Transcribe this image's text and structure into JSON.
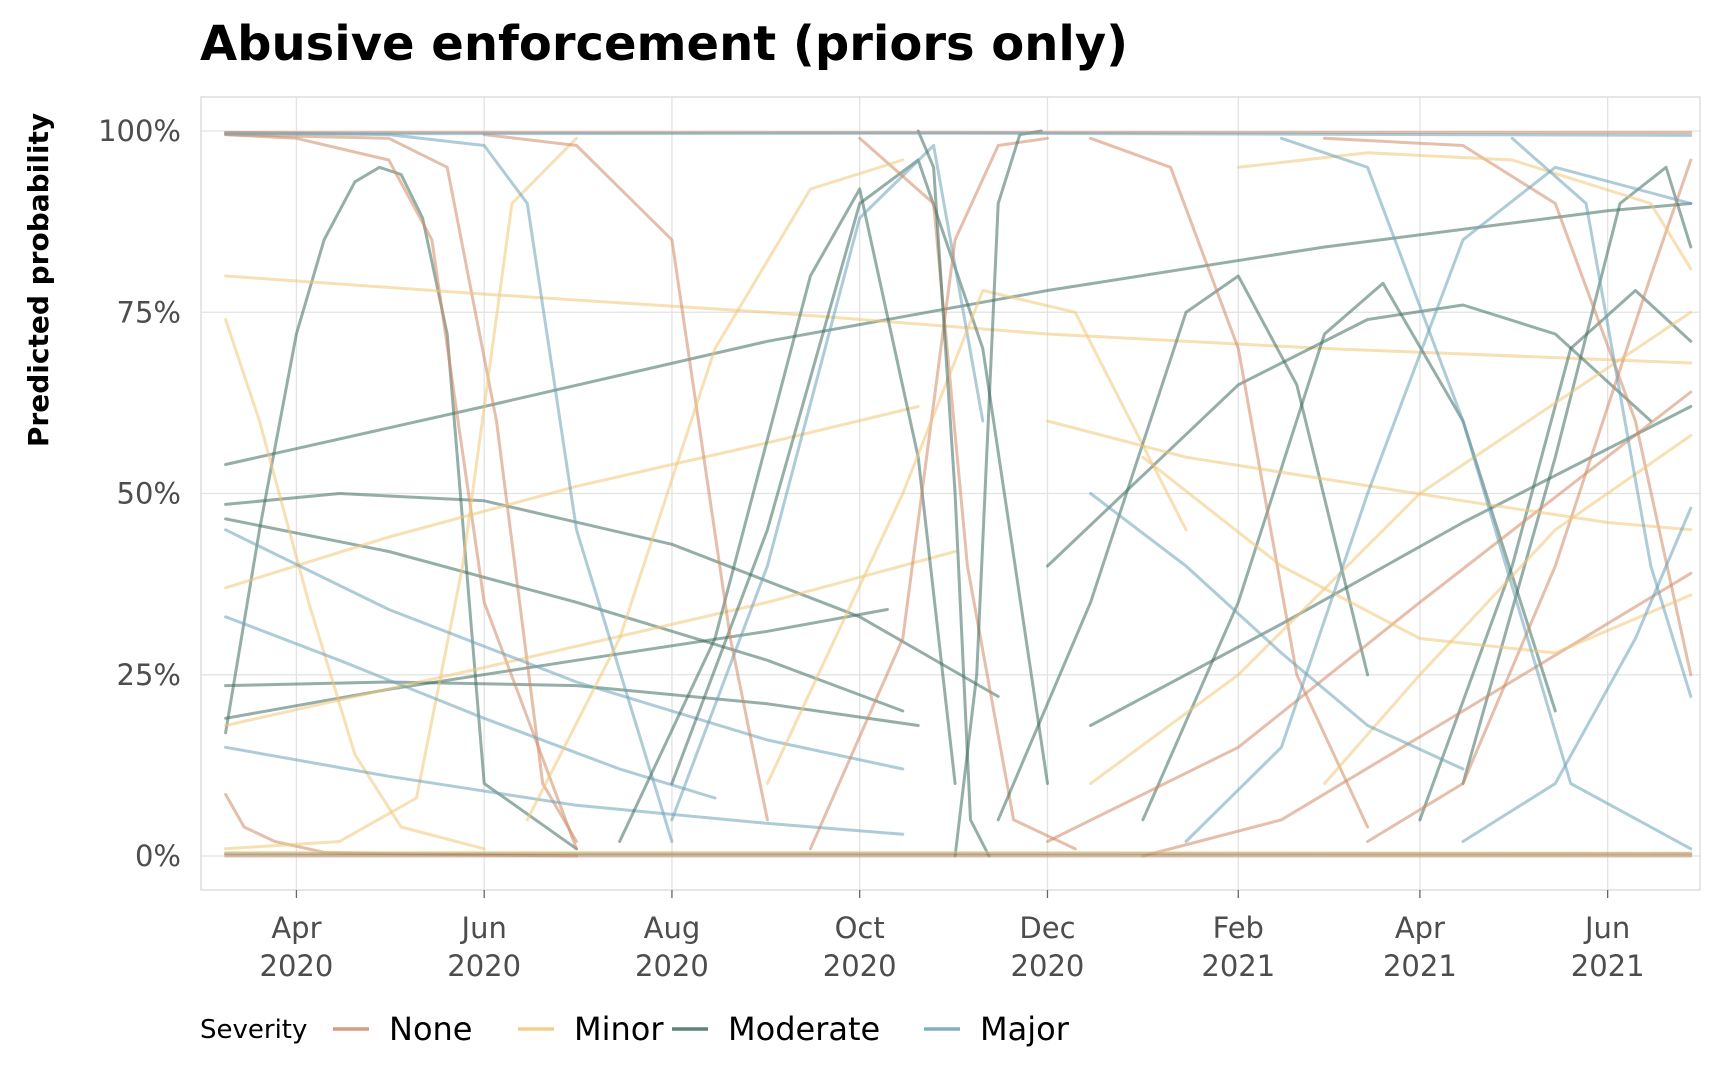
{
  "chart_data": {
    "type": "line",
    "title": "Abusive enforcement (priors only)",
    "xlabel": "",
    "ylabel": "Predicted probability",
    "x_range": [
      "2020-03-01",
      "2021-07-01"
    ],
    "ylim": [
      0,
      1
    ],
    "grid": true,
    "legend_position": "bottom",
    "x_ticks": [
      {
        "date": "2020-04-01",
        "label": [
          "Apr",
          "2020"
        ]
      },
      {
        "date": "2020-06-01",
        "label": [
          "Jun",
          "2020"
        ]
      },
      {
        "date": "2020-08-01",
        "label": [
          "Aug",
          "2020"
        ]
      },
      {
        "date": "2020-10-01",
        "label": [
          "Oct",
          "2020"
        ]
      },
      {
        "date": "2020-12-01",
        "label": [
          "Dec",
          "2020"
        ]
      },
      {
        "date": "2021-02-01",
        "label": [
          "Feb",
          "2021"
        ]
      },
      {
        "date": "2021-04-01",
        "label": [
          "Apr",
          "2021"
        ]
      },
      {
        "date": "2021-06-01",
        "label": [
          "Jun",
          "2021"
        ]
      }
    ],
    "y_ticks": [
      {
        "value": 0,
        "label": "0%"
      },
      {
        "value": 0.25,
        "label": "25%"
      },
      {
        "value": 0.5,
        "label": "50%"
      },
      {
        "value": 0.75,
        "label": "75%"
      },
      {
        "value": 1,
        "label": "100%"
      }
    ],
    "legend": {
      "title": "Severity",
      "entries": [
        {
          "name": "None",
          "color": "#d08a66"
        },
        {
          "name": "Minor",
          "color": "#f0c777"
        },
        {
          "name": "Moderate",
          "color": "#3e6d60"
        },
        {
          "name": "Major",
          "color": "#6ba2b8"
        }
      ]
    },
    "series": [
      {
        "name": "Moderate",
        "x": [
          "2020-03-09",
          "2020-03-20",
          "2020-04-01",
          "2020-04-10",
          "2020-04-20",
          "2020-04-28",
          "2020-05-05",
          "2020-05-12",
          "2020-05-20",
          "2020-06-01",
          "2020-07-01"
        ],
        "y": [
          0.17,
          0.45,
          0.72,
          0.85,
          0.93,
          0.95,
          0.94,
          0.88,
          0.72,
          0.1,
          0.01
        ]
      },
      {
        "name": "Moderate",
        "x": [
          "2020-03-09",
          "2020-06-01",
          "2020-09-01",
          "2020-12-01",
          "2021-03-01",
          "2021-06-01",
          "2021-06-28"
        ],
        "y": [
          0.54,
          0.62,
          0.71,
          0.78,
          0.84,
          0.89,
          0.9
        ]
      },
      {
        "name": "Moderate",
        "x": [
          "2020-03-09",
          "2020-04-15",
          "2020-06-01",
          "2020-08-01",
          "2020-10-01",
          "2020-11-15"
        ],
        "y": [
          0.485,
          0.5,
          0.49,
          0.43,
          0.33,
          0.22
        ]
      },
      {
        "name": "Moderate",
        "x": [
          "2020-03-09",
          "2020-05-01",
          "2020-07-01",
          "2020-09-01",
          "2020-10-20"
        ],
        "y": [
          0.235,
          0.24,
          0.235,
          0.21,
          0.18
        ]
      },
      {
        "name": "Moderate",
        "x": [
          "2020-03-09",
          "2020-05-01",
          "2020-07-01",
          "2020-09-01",
          "2020-10-15"
        ],
        "y": [
          0.465,
          0.42,
          0.35,
          0.27,
          0.2
        ]
      },
      {
        "name": "Moderate",
        "x": [
          "2020-03-09",
          "2020-05-01",
          "2020-07-01",
          "2020-09-01",
          "2020-10-10"
        ],
        "y": [
          0.19,
          0.23,
          0.27,
          0.31,
          0.34
        ]
      },
      {
        "name": "None",
        "x": [
          "2020-03-09",
          "2020-04-01",
          "2020-05-01",
          "2020-05-15",
          "2020-06-01",
          "2020-07-01"
        ],
        "y": [
          0.995,
          0.99,
          0.96,
          0.85,
          0.35,
          0.01
        ]
      },
      {
        "name": "None",
        "x": [
          "2020-03-09",
          "2020-03-15",
          "2020-03-25",
          "2020-04-10",
          "2020-05-01",
          "2020-07-01"
        ],
        "y": [
          0.085,
          0.04,
          0.02,
          0.005,
          0.003,
          0.0
        ]
      },
      {
        "name": "None",
        "x": [
          "2020-03-09",
          "2020-05-01",
          "2020-05-20",
          "2020-06-05",
          "2020-06-20",
          "2020-07-01"
        ],
        "y": [
          0.995,
          0.99,
          0.95,
          0.6,
          0.1,
          0.02
        ]
      },
      {
        "name": "Minor",
        "x": [
          "2020-03-09",
          "2020-06-01",
          "2020-09-01",
          "2020-12-01",
          "2021-03-01",
          "2021-06-28"
        ],
        "y": [
          0.8,
          0.775,
          0.75,
          0.72,
          0.7,
          0.68
        ]
      },
      {
        "name": "Minor",
        "x": [
          "2020-03-09",
          "2020-03-20",
          "2020-04-05",
          "2020-04-20",
          "2020-05-05",
          "2020-06-01"
        ],
        "y": [
          0.74,
          0.6,
          0.35,
          0.14,
          0.04,
          0.01
        ]
      },
      {
        "name": "Minor",
        "x": [
          "2020-03-09",
          "2020-05-01",
          "2020-07-01",
          "2020-09-01",
          "2020-10-20"
        ],
        "y": [
          0.37,
          0.44,
          0.51,
          0.57,
          0.62
        ]
      },
      {
        "name": "Minor",
        "x": [
          "2020-03-09",
          "2020-04-15",
          "2020-05-10",
          "2020-05-25",
          "2020-06-10",
          "2020-07-01"
        ],
        "y": [
          0.01,
          0.02,
          0.08,
          0.4,
          0.9,
          0.99
        ]
      },
      {
        "name": "Minor",
        "x": [
          "2020-03-09",
          "2020-06-01",
          "2020-09-01",
          "2020-11-01"
        ],
        "y": [
          0.18,
          0.26,
          0.35,
          0.42
        ]
      },
      {
        "name": "Major",
        "x": [
          "2020-03-09",
          "2020-05-01",
          "2020-07-01",
          "2020-09-01",
          "2020-10-15"
        ],
        "y": [
          0.45,
          0.34,
          0.24,
          0.16,
          0.12
        ]
      },
      {
        "name": "Major",
        "x": [
          "2020-03-09",
          "2020-04-15",
          "2020-06-01",
          "2020-07-15",
          "2020-08-15"
        ],
        "y": [
          0.33,
          0.27,
          0.19,
          0.12,
          0.08
        ]
      },
      {
        "name": "Major",
        "x": [
          "2020-03-09",
          "2020-05-01",
          "2020-07-01",
          "2020-09-01",
          "2020-10-15"
        ],
        "y": [
          0.15,
          0.11,
          0.07,
          0.045,
          0.03
        ]
      },
      {
        "name": "Major",
        "x": [
          "2020-03-09",
          "2020-05-01",
          "2020-06-01",
          "2020-06-15",
          "2020-07-01",
          "2020-08-01"
        ],
        "y": [
          0.998,
          0.995,
          0.98,
          0.9,
          0.45,
          0.02
        ]
      },
      {
        "name": "Moderate",
        "x": [
          "2020-08-01",
          "2020-09-01",
          "2020-10-01",
          "2020-10-20",
          "2020-11-10",
          "2020-12-01"
        ],
        "y": [
          0.1,
          0.45,
          0.9,
          0.96,
          0.7,
          0.1
        ]
      },
      {
        "name": "Moderate",
        "x": [
          "2020-07-15",
          "2020-08-15",
          "2020-09-15",
          "2020-10-01",
          "2020-10-20",
          "2020-11-01"
        ],
        "y": [
          0.02,
          0.3,
          0.8,
          0.92,
          0.55,
          0.1
        ]
      },
      {
        "name": "Major",
        "x": [
          "2020-08-01",
          "2020-09-01",
          "2020-10-01",
          "2020-10-25",
          "2020-11-10"
        ],
        "y": [
          0.05,
          0.4,
          0.88,
          0.98,
          0.6
        ]
      },
      {
        "name": "None",
        "x": [
          "2020-06-01",
          "2020-07-01",
          "2020-08-01",
          "2020-08-20",
          "2020-09-01"
        ],
        "y": [
          0.995,
          0.98,
          0.85,
          0.3,
          0.05
        ]
      },
      {
        "name": "None",
        "x": [
          "2020-09-15",
          "2020-10-15",
          "2020-11-01",
          "2020-11-15",
          "2020-12-01"
        ],
        "y": [
          0.01,
          0.3,
          0.85,
          0.98,
          0.99
        ]
      },
      {
        "name": "None",
        "x": [
          "2020-10-01",
          "2020-10-25",
          "2020-11-05",
          "2020-11-20",
          "2020-12-10"
        ],
        "y": [
          0.99,
          0.9,
          0.4,
          0.05,
          0.01
        ]
      },
      {
        "name": "Minor",
        "x": [
          "2020-09-01",
          "2020-10-15",
          "2020-11-10",
          "2020-12-10",
          "2021-01-15"
        ],
        "y": [
          0.1,
          0.5,
          0.78,
          0.75,
          0.45
        ]
      },
      {
        "name": "Minor",
        "x": [
          "2020-06-15",
          "2020-07-15",
          "2020-08-15",
          "2020-09-15",
          "2020-10-15"
        ],
        "y": [
          0.05,
          0.3,
          0.7,
          0.92,
          0.96
        ]
      },
      {
        "name": "Moderate",
        "x": [
          "2020-11-15",
          "2020-12-15",
          "2021-01-15",
          "2021-02-01",
          "2021-02-20",
          "2021-03-15"
        ],
        "y": [
          0.05,
          0.35,
          0.75,
          0.8,
          0.65,
          0.25
        ]
      },
      {
        "name": "Moderate",
        "x": [
          "2021-01-01",
          "2021-02-01",
          "2021-03-01",
          "2021-03-20",
          "2021-04-15",
          "2021-05-15"
        ],
        "y": [
          0.05,
          0.35,
          0.72,
          0.79,
          0.6,
          0.2
        ]
      },
      {
        "name": "Moderate",
        "x": [
          "2020-12-01",
          "2021-02-01",
          "2021-03-15",
          "2021-04-15",
          "2021-05-15",
          "2021-06-15"
        ],
        "y": [
          0.4,
          0.65,
          0.74,
          0.76,
          0.72,
          0.6
        ]
      },
      {
        "name": "Moderate",
        "x": [
          "2021-04-01",
          "2021-05-01",
          "2021-05-20",
          "2021-06-10",
          "2021-06-28"
        ],
        "y": [
          0.05,
          0.4,
          0.7,
          0.78,
          0.71
        ]
      },
      {
        "name": "Moderate",
        "x": [
          "2021-04-15",
          "2021-05-15",
          "2021-06-05",
          "2021-06-20",
          "2021-06-28"
        ],
        "y": [
          0.1,
          0.55,
          0.9,
          0.95,
          0.84
        ]
      },
      {
        "name": "Moderate",
        "x": [
          "2020-12-15",
          "2021-02-15",
          "2021-04-15",
          "2021-06-28"
        ],
        "y": [
          0.18,
          0.32,
          0.46,
          0.62
        ]
      },
      {
        "name": "None",
        "x": [
          "2020-12-01",
          "2021-02-01",
          "2021-04-01",
          "2021-06-28"
        ],
        "y": [
          0.02,
          0.15,
          0.35,
          0.64
        ]
      },
      {
        "name": "None",
        "x": [
          "2021-03-01",
          "2021-04-15",
          "2021-05-15",
          "2021-06-10",
          "2021-06-28"
        ],
        "y": [
          0.99,
          0.98,
          0.9,
          0.6,
          0.25
        ]
      },
      {
        "name": "None",
        "x": [
          "2021-01-01",
          "2021-02-15",
          "2021-04-15",
          "2021-06-28"
        ],
        "y": [
          0.0,
          0.05,
          0.2,
          0.39
        ]
      },
      {
        "name": "None",
        "x": [
          "2020-12-15",
          "2021-01-10",
          "2021-02-01",
          "2021-02-20",
          "2021-03-15"
        ],
        "y": [
          0.99,
          0.95,
          0.7,
          0.25,
          0.04
        ]
      },
      {
        "name": "None",
        "x": [
          "2021-03-15",
          "2021-04-15",
          "2021-05-15",
          "2021-06-15",
          "2021-06-28"
        ],
        "y": [
          0.02,
          0.1,
          0.4,
          0.8,
          0.96
        ]
      },
      {
        "name": "Minor",
        "x": [
          "2020-12-01",
          "2021-01-15",
          "2021-03-01",
          "2021-04-15",
          "2021-06-01",
          "2021-06-28"
        ],
        "y": [
          0.6,
          0.55,
          0.52,
          0.49,
          0.46,
          0.45
        ]
      },
      {
        "name": "Minor",
        "x": [
          "2021-01-01",
          "2021-02-15",
          "2021-04-01",
          "2021-05-15",
          "2021-06-28"
        ],
        "y": [
          0.55,
          0.4,
          0.3,
          0.28,
          0.36
        ]
      },
      {
        "name": "Minor",
        "x": [
          "2021-02-01",
          "2021-03-15",
          "2021-05-01",
          "2021-06-15",
          "2021-06-28"
        ],
        "y": [
          0.95,
          0.97,
          0.96,
          0.9,
          0.81
        ]
      },
      {
        "name": "Minor",
        "x": [
          "2021-03-01",
          "2021-04-01",
          "2021-05-15",
          "2021-06-28"
        ],
        "y": [
          0.1,
          0.25,
          0.45,
          0.58
        ]
      },
      {
        "name": "Minor",
        "x": [
          "2020-12-15",
          "2021-02-01",
          "2021-04-01",
          "2021-06-28"
        ],
        "y": [
          0.1,
          0.25,
          0.5,
          0.75
        ]
      },
      {
        "name": "Major",
        "x": [
          "2021-01-15",
          "2021-02-15",
          "2021-03-15",
          "2021-04-15",
          "2021-05-15",
          "2021-06-28"
        ],
        "y": [
          0.02,
          0.15,
          0.5,
          0.85,
          0.95,
          0.9
        ]
      },
      {
        "name": "Major",
        "x": [
          "2021-02-15",
          "2021-03-15",
          "2021-04-15",
          "2021-05-20",
          "2021-06-28"
        ],
        "y": [
          0.99,
          0.95,
          0.6,
          0.1,
          0.01
        ]
      },
      {
        "name": "Major",
        "x": [
          "2021-04-15",
          "2021-05-15",
          "2021-06-10",
          "2021-06-28"
        ],
        "y": [
          0.02,
          0.1,
          0.3,
          0.48
        ]
      },
      {
        "name": "Major",
        "x": [
          "2020-12-15",
          "2021-01-15",
          "2021-02-15",
          "2021-03-15",
          "2021-04-15"
        ],
        "y": [
          0.5,
          0.4,
          0.28,
          0.18,
          0.12
        ]
      },
      {
        "name": "Major",
        "x": [
          "2021-05-01",
          "2021-05-25",
          "2021-06-15",
          "2021-06-28"
        ],
        "y": [
          0.99,
          0.9,
          0.4,
          0.22
        ]
      },
      {
        "name": "Moderate",
        "x": [
          "2020-11-01",
          "2020-11-08",
          "2020-11-15",
          "2020-11-22",
          "2020-11-29"
        ],
        "y": [
          0.0,
          0.25,
          0.9,
          0.995,
          1.0
        ]
      },
      {
        "name": "Moderate",
        "x": [
          "2020-10-20",
          "2020-10-25",
          "2020-11-01",
          "2020-11-06",
          "2020-11-12"
        ],
        "y": [
          1.0,
          0.95,
          0.5,
          0.05,
          0.0
        ]
      },
      {
        "name": "Moderate",
        "x": [
          "2020-03-09",
          "2020-11-01",
          "2021-06-28"
        ],
        "y": [
          0.003,
          0.003,
          0.003
        ]
      },
      {
        "name": "None",
        "x": [
          "2020-03-09",
          "2020-11-01",
          "2021-06-28"
        ],
        "y": [
          0.998,
          0.998,
          0.998
        ]
      },
      {
        "name": "None",
        "x": [
          "2020-03-09",
          "2020-11-01",
          "2021-06-28"
        ],
        "y": [
          0.0,
          0.0,
          0.0
        ]
      },
      {
        "name": "Major",
        "x": [
          "2020-03-09",
          "2020-11-01",
          "2021-06-28"
        ],
        "y": [
          0.996,
          0.997,
          0.994
        ]
      },
      {
        "name": "Minor",
        "x": [
          "2020-03-09",
          "2020-11-01",
          "2021-06-28"
        ],
        "y": [
          0.005,
          0.005,
          0.004
        ]
      }
    ]
  }
}
